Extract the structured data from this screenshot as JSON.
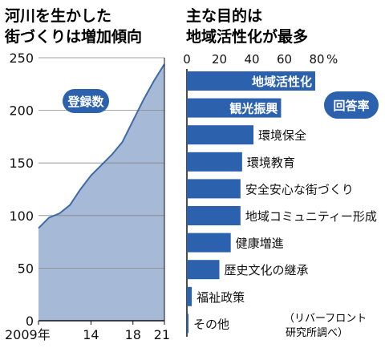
{
  "chart_data": [
    {
      "type": "area",
      "title_lines": [
        "河川を生かした",
        "街づくりは増加傾向"
      ],
      "badge": "登録数",
      "x_tick_labels": [
        "2009年",
        "14",
        "18",
        "21"
      ],
      "x_tick_years": [
        2009,
        2014,
        2018,
        2021
      ],
      "xlim": [
        2009,
        2021
      ],
      "y_ticks": [
        0,
        50,
        100,
        150,
        200,
        250
      ],
      "ylim": [
        0,
        250
      ],
      "grid": true,
      "x": [
        2009,
        2010,
        2011,
        2012,
        2013,
        2014,
        2015,
        2016,
        2017,
        2018,
        2019,
        2020,
        2021
      ],
      "values": [
        88,
        98,
        102,
        110,
        125,
        138,
        148,
        158,
        170,
        190,
        210,
        228,
        244
      ]
    },
    {
      "type": "bar",
      "orientation": "horizontal",
      "title_lines": [
        "主な目的は",
        "地域活性化が最多"
      ],
      "badge": "回答率",
      "x_ticks": [
        0,
        20,
        40,
        60,
        80
      ],
      "x_unit": "%",
      "xlim": [
        0,
        80
      ],
      "categories": [
        "地域活性化",
        "観光振興",
        "環境保全",
        "環境教育",
        "安全安心な街づくり",
        "地域コミュニティー形成",
        "健康増進",
        "歴史文化の継承",
        "福祉政策",
        "その他"
      ],
      "values": [
        79,
        58,
        41,
        34,
        33,
        33,
        27,
        20,
        3,
        1
      ],
      "label_inside": [
        true,
        true,
        false,
        false,
        false,
        false,
        false,
        false,
        false,
        false
      ],
      "source_note_lines": [
        "（リバーフロント",
        "研究所調べ）"
      ]
    }
  ],
  "colors": {
    "area_fill": "#a6b9d6",
    "area_line": "#3e6aaa",
    "bar": "#2c61ad",
    "grid": "#888888",
    "text": "#111111"
  }
}
